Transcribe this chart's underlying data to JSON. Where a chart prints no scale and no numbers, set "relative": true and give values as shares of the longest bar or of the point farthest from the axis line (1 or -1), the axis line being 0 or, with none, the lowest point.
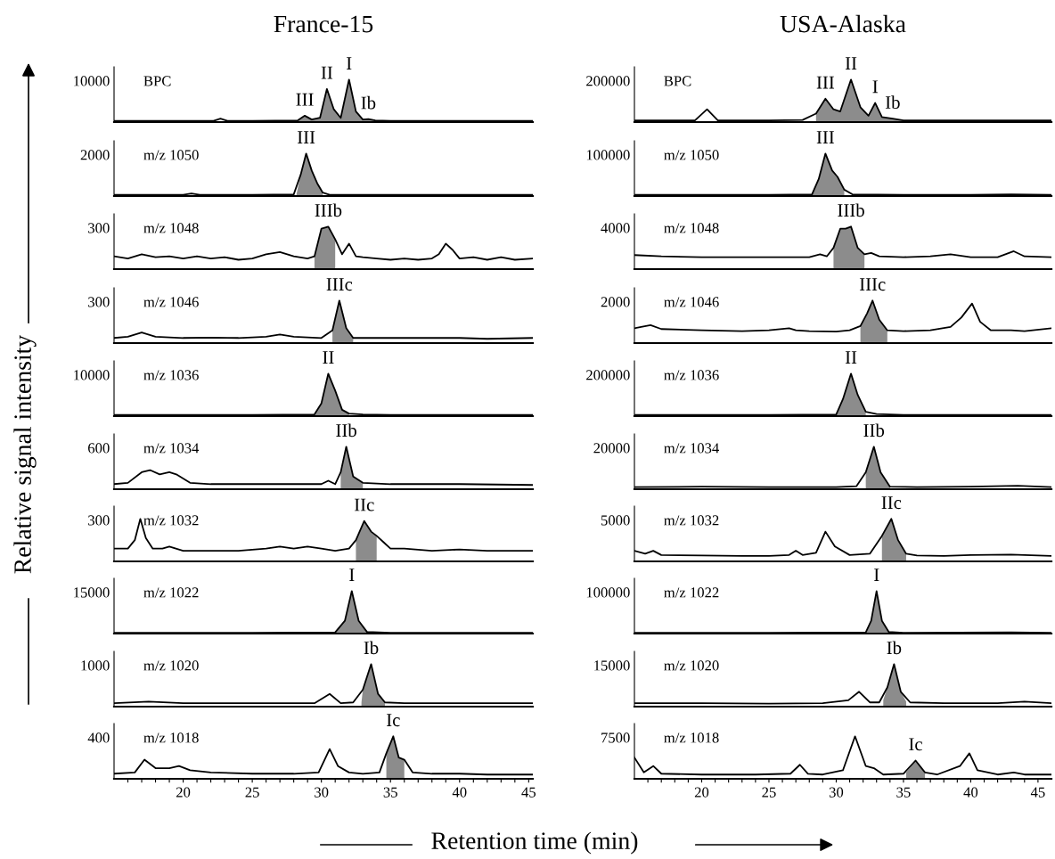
{
  "chart_data": [
    {
      "type": "line",
      "relative": true,
      "tick_labels": false,
      "title": "France-15",
      "xlim": [
        15,
        45.3
      ],
      "annotations": [
        "10000",
        "BPC",
        {
          "text": "III",
          "x": 28.8,
          "y": 0.15
        },
        {
          "text": "II",
          "x": 30.4,
          "y": 0.78
        },
        {
          "text": "I",
          "x": 32.0,
          "y": 1.0
        },
        {
          "text": "Ib",
          "x": 33.4,
          "y": 0.07
        }
      ],
      "series": [
        {
          "type": "line",
          "color": "#000000",
          "x": [
            15,
            20,
            22.2,
            22.7,
            23.2,
            25,
            28.3,
            28.8,
            29.3,
            29.9,
            30.4,
            30.9,
            31.4,
            32.0,
            32.5,
            33.0,
            33.4,
            33.9,
            35,
            40,
            45.3
          ],
          "values": [
            0.03,
            0.03,
            0.03,
            0.08,
            0.03,
            0.03,
            0.04,
            0.15,
            0.06,
            0.1,
            0.78,
            0.3,
            0.1,
            1.0,
            0.25,
            0.06,
            0.07,
            0.04,
            0.03,
            0.03,
            0.03
          ]
        },
        {
          "type": "area",
          "color": "#8c8c8c",
          "x": [
            28.3,
            28.8,
            29.3,
            29.9,
            30.4,
            30.9,
            31.4,
            32.0,
            32.5,
            33.0,
            33.4,
            33.9
          ],
          "values": [
            0.04,
            0.15,
            0.06,
            0.1,
            0.78,
            0.3,
            0.1,
            1.0,
            0.25,
            0.06,
            0.07,
            0.04
          ]
        }
      ]
    },
    {
      "type": "line",
      "relative": true,
      "tick_labels": false,
      "title": "USA-Alaska",
      "xlim": [
        15,
        46
      ],
      "annotations": [
        "200000",
        "BPC",
        {
          "text": "III",
          "x": 29.2,
          "y": 0.55
        },
        {
          "text": "II",
          "x": 31.1,
          "y": 1.0
        },
        {
          "text": "I",
          "x": 32.9,
          "y": 0.45
        },
        {
          "text": "Ib",
          "x": 34.2,
          "y": 0.08
        }
      ],
      "series": [
        {
          "type": "line",
          "color": "#000000",
          "x": [
            15,
            19.5,
            20.4,
            21.2,
            25,
            27.5,
            28.5,
            29.2,
            29.8,
            30.3,
            31.1,
            31.8,
            32.4,
            32.9,
            33.4,
            34.2,
            35,
            38,
            46
          ],
          "values": [
            0.04,
            0.04,
            0.3,
            0.04,
            0.04,
            0.05,
            0.2,
            0.55,
            0.3,
            0.25,
            1.0,
            0.35,
            0.15,
            0.45,
            0.12,
            0.08,
            0.04,
            0.04,
            0.04
          ]
        },
        {
          "type": "area",
          "color": "#8c8c8c",
          "x": [
            28.5,
            29.2,
            29.8,
            30.3,
            31.1,
            31.8,
            32.4,
            32.9,
            33.4,
            34.2,
            35
          ],
          "values": [
            0.2,
            0.55,
            0.3,
            0.25,
            1.0,
            0.35,
            0.15,
            0.45,
            0.12,
            0.08,
            0.04
          ]
        }
      ]
    },
    {
      "type": "line",
      "relative": true,
      "tick_labels": false,
      "xlim": [
        15,
        45.3
      ],
      "annotations": [
        "2000",
        "m/z 1050",
        {
          "text": "III",
          "x": 28.9,
          "y": 1.0
        }
      ],
      "series": [
        {
          "type": "line",
          "color": "#000000",
          "x": [
            15,
            20,
            20.6,
            21.2,
            25,
            28,
            28.5,
            28.9,
            29.3,
            29.7,
            30.1,
            30.6,
            35,
            40,
            45.3
          ],
          "values": [
            0.03,
            0.03,
            0.06,
            0.03,
            0.03,
            0.04,
            0.5,
            1,
            0.6,
            0.3,
            0.08,
            0.03,
            0.03,
            0.03,
            0.03
          ]
        },
        {
          "type": "area",
          "color": "#8c8c8c",
          "x": [
            28.2,
            28.5,
            28.9,
            29.3,
            29.7,
            30.1
          ],
          "values": [
            0.04,
            0.5,
            1,
            0.6,
            0.3,
            0.08
          ]
        }
      ]
    },
    {
      "type": "line",
      "relative": true,
      "tick_labels": false,
      "xlim": [
        15,
        46
      ],
      "annotations": [
        "100000",
        "m/z 1050",
        {
          "text": "III",
          "x": 29.2,
          "y": 1.0
        }
      ],
      "series": [
        {
          "type": "line",
          "color": "#000000",
          "x": [
            15,
            25,
            28.2,
            28.7,
            29.2,
            29.7,
            30.1,
            30.6,
            31.2,
            35,
            40,
            43,
            46
          ],
          "values": [
            0.03,
            0.03,
            0.04,
            0.4,
            1,
            0.6,
            0.45,
            0.15,
            0.04,
            0.03,
            0.03,
            0.04,
            0.03
          ]
        },
        {
          "type": "area",
          "color": "#8c8c8c",
          "x": [
            28.2,
            28.7,
            29.2,
            29.7,
            30.1,
            30.6
          ],
          "values": [
            0.04,
            0.4,
            1,
            0.6,
            0.45,
            0.15
          ]
        }
      ]
    },
    {
      "type": "line",
      "relative": true,
      "tick_labels": false,
      "xlim": [
        15,
        45.3
      ],
      "annotations": [
        "300",
        "m/z 1048",
        {
          "text": "IIIb",
          "x": 30.5,
          "y": 1.0
        }
      ],
      "series": [
        {
          "type": "line",
          "color": "#000000",
          "x": [
            15,
            16,
            17,
            18,
            19,
            20,
            21,
            22,
            23,
            24,
            25,
            26,
            27,
            28,
            29,
            29.5,
            30,
            30.5,
            31,
            31.5,
            32,
            32.5,
            33,
            34,
            35,
            36,
            37,
            38,
            38.5,
            39,
            39.5,
            40,
            41,
            42,
            43,
            44,
            45.3
          ],
          "values": [
            0.3,
            0.25,
            0.35,
            0.28,
            0.3,
            0.25,
            0.3,
            0.25,
            0.28,
            0.22,
            0.25,
            0.35,
            0.4,
            0.3,
            0.25,
            0.3,
            0.95,
            1,
            0.7,
            0.35,
            0.6,
            0.3,
            0.28,
            0.25,
            0.22,
            0.25,
            0.22,
            0.25,
            0.35,
            0.6,
            0.45,
            0.25,
            0.28,
            0.22,
            0.28,
            0.22,
            0.25
          ]
        },
        {
          "type": "area",
          "color": "#8c8c8c",
          "x": [
            29.5,
            30,
            30.5,
            31
          ],
          "values": [
            0.3,
            0.95,
            1,
            0.7
          ]
        }
      ]
    },
    {
      "type": "line",
      "relative": true,
      "tick_labels": false,
      "xlim": [
        15,
        46
      ],
      "annotations": [
        "4000",
        "m/z 1048",
        {
          "text": "IIIb",
          "x": 31.1,
          "y": 1.0
        }
      ],
      "series": [
        {
          "type": "line",
          "color": "#000000",
          "x": [
            15,
            17,
            20,
            25,
            28,
            28.8,
            29.3,
            29.8,
            30.3,
            30.7,
            31.1,
            31.6,
            32.1,
            32.6,
            33.2,
            35,
            37,
            38.5,
            40,
            42,
            43.2,
            44,
            46
          ],
          "values": [
            0.33,
            0.3,
            0.28,
            0.28,
            0.28,
            0.35,
            0.3,
            0.5,
            0.95,
            0.95,
            1,
            0.5,
            0.35,
            0.38,
            0.3,
            0.28,
            0.3,
            0.35,
            0.28,
            0.28,
            0.42,
            0.3,
            0.28
          ]
        },
        {
          "type": "area",
          "color": "#8c8c8c",
          "x": [
            29.8,
            30.3,
            30.7,
            31.1,
            31.6,
            32.1
          ],
          "values": [
            0.5,
            0.95,
            0.95,
            1,
            0.5,
            0.35
          ]
        }
      ]
    },
    {
      "type": "line",
      "relative": true,
      "tick_labels": false,
      "xlim": [
        15,
        45.3
      ],
      "annotations": [
        "300",
        "m/z 1046",
        {
          "text": "IIIc",
          "x": 31.3,
          "y": 1.0
        }
      ],
      "series": [
        {
          "type": "line",
          "color": "#000000",
          "x": [
            15,
            16,
            17,
            18,
            20,
            22,
            24,
            26,
            27,
            28,
            30,
            30.8,
            31.3,
            31.8,
            32.3,
            33,
            35,
            38,
            40,
            42,
            45.3
          ],
          "values": [
            0.12,
            0.15,
            0.25,
            0.15,
            0.12,
            0.13,
            0.12,
            0.15,
            0.2,
            0.15,
            0.12,
            0.3,
            1,
            0.35,
            0.12,
            0.12,
            0.12,
            0.12,
            0.12,
            0.1,
            0.12
          ]
        },
        {
          "type": "area",
          "color": "#8c8c8c",
          "x": [
            30.8,
            31.3,
            31.8,
            32.3
          ],
          "values": [
            0.3,
            1,
            0.35,
            0.12
          ]
        }
      ]
    },
    {
      "type": "line",
      "relative": true,
      "tick_labels": false,
      "xlim": [
        15,
        46
      ],
      "annotations": [
        "2000",
        "m/z 1046",
        {
          "text": "IIIc",
          "x": 32.7,
          "y": 1.0
        }
      ],
      "series": [
        {
          "type": "line",
          "color": "#000000",
          "x": [
            15,
            15.5,
            16.2,
            17,
            20,
            23,
            25,
            26.5,
            27,
            28,
            30,
            31,
            31.8,
            32.3,
            32.7,
            33.2,
            33.8,
            35,
            37,
            38.5,
            39.3,
            40.1,
            40.7,
            41.5,
            43,
            44,
            46
          ],
          "values": [
            0.35,
            0.38,
            0.42,
            0.33,
            0.3,
            0.28,
            0.3,
            0.35,
            0.3,
            0.28,
            0.27,
            0.3,
            0.4,
            0.7,
            1,
            0.55,
            0.3,
            0.28,
            0.3,
            0.38,
            0.6,
            0.93,
            0.5,
            0.3,
            0.3,
            0.28,
            0.35
          ]
        },
        {
          "type": "area",
          "color": "#8c8c8c",
          "x": [
            31.8,
            32.3,
            32.7,
            33.2,
            33.8
          ],
          "values": [
            0.4,
            0.7,
            1,
            0.55,
            0.3
          ]
        }
      ]
    },
    {
      "type": "line",
      "relative": true,
      "tick_labels": false,
      "xlim": [
        15,
        45.3
      ],
      "annotations": [
        "10000",
        "m/z 1036",
        {
          "text": "II",
          "x": 30.5,
          "y": 1.0
        }
      ],
      "series": [
        {
          "type": "line",
          "color": "#000000",
          "x": [
            15,
            25,
            29.5,
            30,
            30.5,
            31,
            31.5,
            32,
            33,
            35,
            45.3
          ],
          "values": [
            0.03,
            0.03,
            0.04,
            0.3,
            1,
            0.6,
            0.15,
            0.06,
            0.04,
            0.03,
            0.03
          ]
        },
        {
          "type": "area",
          "color": "#8c8c8c",
          "x": [
            29.5,
            30,
            30.5,
            31,
            31.5,
            32
          ],
          "values": [
            0.04,
            0.3,
            1,
            0.6,
            0.15,
            0.06
          ]
        }
      ]
    },
    {
      "type": "line",
      "relative": true,
      "tick_labels": false,
      "xlim": [
        15,
        46
      ],
      "annotations": [
        "200000",
        "m/z 1036",
        {
          "text": "II",
          "x": 31.1,
          "y": 1.0
        }
      ],
      "series": [
        {
          "type": "line",
          "color": "#000000",
          "x": [
            15,
            25,
            30,
            30.5,
            31.1,
            31.6,
            32.2,
            33,
            35,
            46
          ],
          "values": [
            0.03,
            0.03,
            0.04,
            0.4,
            1,
            0.5,
            0.1,
            0.05,
            0.03,
            0.03
          ]
        },
        {
          "type": "area",
          "color": "#8c8c8c",
          "x": [
            30,
            30.5,
            31.1,
            31.6,
            32.2
          ],
          "values": [
            0.04,
            0.4,
            1,
            0.5,
            0.1
          ]
        }
      ]
    },
    {
      "type": "line",
      "relative": true,
      "tick_labels": false,
      "ylabel": "Relative signal intensity",
      "xlim": [
        15,
        45.3
      ],
      "annotations": [
        "600",
        "m/z 1034",
        {
          "text": "IIb",
          "x": 31.8,
          "y": 1.0
        }
      ],
      "series": [
        {
          "type": "line",
          "color": "#000000",
          "x": [
            15,
            16,
            17,
            17.6,
            18.3,
            19,
            19.5,
            20.5,
            22,
            25,
            28,
            30,
            30.5,
            31,
            31.4,
            31.8,
            32.3,
            33,
            35,
            40,
            45.3
          ],
          "values": [
            0.12,
            0.15,
            0.4,
            0.45,
            0.35,
            0.4,
            0.35,
            0.15,
            0.12,
            0.12,
            0.12,
            0.12,
            0.2,
            0.12,
            0.4,
            1,
            0.3,
            0.15,
            0.12,
            0.12,
            0.1
          ]
        },
        {
          "type": "area",
          "color": "#8c8c8c",
          "x": [
            31.4,
            31.8,
            32.3,
            33
          ],
          "values": [
            0.4,
            1,
            0.3,
            0.15
          ]
        }
      ]
    },
    {
      "type": "line",
      "relative": true,
      "tick_labels": false,
      "xlim": [
        15,
        46
      ],
      "annotations": [
        "20000",
        "m/z 1034",
        {
          "text": "IIb",
          "x": 32.8,
          "y": 1.0
        }
      ],
      "series": [
        {
          "type": "line",
          "color": "#000000",
          "x": [
            15,
            20,
            25,
            30,
            31.5,
            32.2,
            32.8,
            33.3,
            34,
            36,
            40,
            43.5,
            46
          ],
          "values": [
            0.05,
            0.06,
            0.05,
            0.05,
            0.07,
            0.4,
            1,
            0.4,
            0.06,
            0.05,
            0.06,
            0.08,
            0.05
          ]
        },
        {
          "type": "area",
          "color": "#8c8c8c",
          "x": [
            32.2,
            32.8,
            33.3,
            34
          ],
          "values": [
            0.4,
            1,
            0.4,
            0.06
          ]
        }
      ]
    },
    {
      "type": "line",
      "relative": true,
      "tick_labels": false,
      "xlim": [
        15,
        45.3
      ],
      "annotations": [
        "300",
        "m/z 1032",
        {
          "text": "IIc",
          "x": 33.1,
          "y": 0.95
        }
      ],
      "series": [
        {
          "type": "line",
          "color": "#000000",
          "x": [
            15,
            16,
            16.5,
            16.9,
            17.3,
            17.8,
            18.5,
            19,
            20,
            22,
            24,
            26,
            27,
            28,
            29,
            30,
            31,
            32,
            32.5,
            33.1,
            33.6,
            34,
            34.5,
            35,
            36,
            38,
            40,
            42,
            45.3
          ],
          "values": [
            0.3,
            0.3,
            0.5,
            1,
            0.55,
            0.3,
            0.3,
            0.35,
            0.25,
            0.25,
            0.25,
            0.3,
            0.35,
            0.3,
            0.35,
            0.3,
            0.25,
            0.3,
            0.5,
            0.95,
            0.7,
            0.6,
            0.45,
            0.3,
            0.3,
            0.25,
            0.28,
            0.25,
            0.25
          ]
        },
        {
          "type": "area",
          "color": "#8c8c8c",
          "x": [
            32.5,
            33.1,
            33.6,
            34
          ],
          "values": [
            0.5,
            0.95,
            0.7,
            0.6
          ]
        }
      ]
    },
    {
      "type": "line",
      "relative": true,
      "tick_labels": false,
      "xlim": [
        15,
        46
      ],
      "annotations": [
        "5000",
        "m/z 1032",
        {
          "text": "IIc",
          "x": 34.1,
          "y": 1.0
        }
      ],
      "series": [
        {
          "type": "line",
          "color": "#000000",
          "x": [
            15,
            15.8,
            16.4,
            17,
            20,
            23,
            25,
            26.5,
            27,
            27.5,
            28.5,
            29.2,
            29.9,
            31,
            32.5,
            33.4,
            34.1,
            34.6,
            35.2,
            36,
            38,
            40,
            43,
            46
          ],
          "values": [
            0.25,
            0.18,
            0.25,
            0.15,
            0.14,
            0.13,
            0.13,
            0.15,
            0.25,
            0.15,
            0.2,
            0.7,
            0.35,
            0.15,
            0.18,
            0.6,
            1,
            0.5,
            0.18,
            0.14,
            0.13,
            0.15,
            0.16,
            0.13
          ]
        },
        {
          "type": "area",
          "color": "#8c8c8c",
          "x": [
            33.4,
            34.1,
            34.6,
            35.2
          ],
          "values": [
            0.6,
            1,
            0.5,
            0.18
          ]
        }
      ]
    },
    {
      "type": "line",
      "relative": true,
      "tick_labels": false,
      "xlim": [
        15,
        45.3
      ],
      "annotations": [
        "15000",
        "m/z 1022",
        {
          "text": "I",
          "x": 32.2,
          "y": 1.0
        }
      ],
      "series": [
        {
          "type": "line",
          "color": "#000000",
          "x": [
            15,
            25,
            31,
            31.7,
            32.2,
            32.7,
            33.3,
            35,
            45.3
          ],
          "values": [
            0.02,
            0.02,
            0.03,
            0.3,
            1,
            0.3,
            0.04,
            0.02,
            0.02
          ]
        },
        {
          "type": "area",
          "color": "#8c8c8c",
          "x": [
            31,
            31.7,
            32.2,
            32.7,
            33.3
          ],
          "values": [
            0.03,
            0.3,
            1,
            0.3,
            0.04
          ]
        }
      ]
    },
    {
      "type": "line",
      "relative": true,
      "tick_labels": false,
      "xlim": [
        15,
        46
      ],
      "annotations": [
        "100000",
        "m/z 1022",
        {
          "text": "I",
          "x": 33.0,
          "y": 1.0
        }
      ],
      "series": [
        {
          "type": "line",
          "color": "#000000",
          "x": [
            15,
            25,
            32.2,
            32.6,
            33.0,
            33.4,
            33.9,
            35,
            43,
            46
          ],
          "values": [
            0.02,
            0.02,
            0.03,
            0.3,
            1,
            0.3,
            0.04,
            0.02,
            0.03,
            0.02
          ]
        },
        {
          "type": "area",
          "color": "#8c8c8c",
          "x": [
            32.2,
            32.6,
            33.0,
            33.4,
            33.9
          ],
          "values": [
            0.03,
            0.3,
            1,
            0.3,
            0.04
          ]
        }
      ]
    },
    {
      "type": "line",
      "relative": true,
      "tick_labels": false,
      "xlim": [
        15,
        45.3
      ],
      "annotations": [
        "1000",
        "m/z 1020",
        {
          "text": "Ib",
          "x": 33.6,
          "y": 1.0
        }
      ],
      "series": [
        {
          "type": "line",
          "color": "#000000",
          "x": [
            15,
            17.5,
            20,
            25,
            29.5,
            30.6,
            31.4,
            32.3,
            33,
            33.6,
            34.1,
            34.6,
            36,
            40,
            45.3
          ],
          "values": [
            0.08,
            0.12,
            0.08,
            0.08,
            0.08,
            0.3,
            0.08,
            0.1,
            0.4,
            1,
            0.3,
            0.1,
            0.08,
            0.08,
            0.08
          ]
        },
        {
          "type": "area",
          "color": "#8c8c8c",
          "x": [
            32.9,
            33,
            33.6,
            34.1,
            34.6
          ],
          "values": [
            0.1,
            0.4,
            1,
            0.3,
            0.1
          ]
        }
      ]
    },
    {
      "type": "line",
      "relative": true,
      "tick_labels": false,
      "xlim": [
        15,
        46
      ],
      "annotations": [
        "15000",
        "m/z 1020",
        {
          "text": "Ib",
          "x": 34.3,
          "y": 1.0
        }
      ],
      "series": [
        {
          "type": "line",
          "color": "#000000",
          "x": [
            15,
            20,
            25,
            29,
            30.9,
            31.7,
            32.5,
            33.2,
            33.8,
            34.3,
            34.8,
            35.5,
            38,
            42,
            44,
            46
          ],
          "values": [
            0.08,
            0.08,
            0.07,
            0.08,
            0.15,
            0.35,
            0.1,
            0.1,
            0.45,
            1,
            0.35,
            0.1,
            0.08,
            0.08,
            0.12,
            0.08
          ]
        },
        {
          "type": "area",
          "color": "#8c8c8c",
          "x": [
            33.5,
            33.8,
            34.3,
            34.8,
            35.2
          ],
          "values": [
            0.15,
            0.45,
            1,
            0.35,
            0.12
          ]
        }
      ]
    },
    {
      "type": "line",
      "relative": true,
      "tick_labels": "x",
      "xlabel": "Retention time (min)",
      "xlim": [
        15,
        45.3
      ],
      "xticks": [
        {
          "value": 16,
          "label": null
        },
        {
          "value": 17,
          "label": null
        },
        {
          "value": 18,
          "label": null
        },
        {
          "value": 19,
          "label": null
        },
        20,
        {
          "value": 21,
          "label": null
        },
        {
          "value": 22,
          "label": null
        },
        {
          "value": 23,
          "label": null
        },
        {
          "value": 24,
          "label": null
        },
        25,
        {
          "value": 26,
          "label": null
        },
        {
          "value": 27,
          "label": null
        },
        {
          "value": 28,
          "label": null
        },
        {
          "value": 29,
          "label": null
        },
        30,
        {
          "value": 31,
          "label": null
        },
        {
          "value": 32,
          "label": null
        },
        {
          "value": 33,
          "label": null
        },
        {
          "value": 34,
          "label": null
        },
        35,
        {
          "value": 36,
          "label": null
        },
        {
          "value": 37,
          "label": null
        },
        {
          "value": 38,
          "label": null
        },
        {
          "value": 39,
          "label": null
        },
        40,
        {
          "value": 41,
          "label": null
        },
        {
          "value": 42,
          "label": null
        },
        {
          "value": 43,
          "label": null
        },
        {
          "value": 44,
          "label": null
        },
        45
      ],
      "annotations": [
        "400",
        "m/z 1018",
        {
          "text": "Ic",
          "x": 35.2,
          "y": 1.0
        }
      ],
      "series": [
        {
          "type": "line",
          "color": "#000000",
          "x": [
            15,
            16.5,
            17.2,
            18,
            19,
            19.7,
            20.5,
            22,
            25,
            28,
            29.8,
            30.6,
            31.2,
            32,
            33,
            34.2,
            34.7,
            35.2,
            35.6,
            36,
            36.6,
            38,
            40,
            42,
            45.3
          ],
          "values": [
            0.12,
            0.15,
            0.45,
            0.25,
            0.25,
            0.3,
            0.2,
            0.15,
            0.12,
            0.12,
            0.15,
            0.7,
            0.3,
            0.15,
            0.12,
            0.15,
            0.6,
            1,
            0.5,
            0.45,
            0.15,
            0.12,
            0.12,
            0.1,
            0.1
          ]
        },
        {
          "type": "area",
          "color": "#8c8c8c",
          "x": [
            34.7,
            35.2,
            35.6,
            36
          ],
          "values": [
            0.6,
            1,
            0.5,
            0.45
          ]
        }
      ]
    },
    {
      "type": "line",
      "relative": true,
      "tick_labels": "x",
      "xlim": [
        15,
        46
      ],
      "xticks": [
        {
          "value": 16,
          "label": null
        },
        {
          "value": 17,
          "label": null
        },
        {
          "value": 18,
          "label": null
        },
        {
          "value": 19,
          "label": null
        },
        20,
        {
          "value": 21,
          "label": null
        },
        {
          "value": 22,
          "label": null
        },
        {
          "value": 23,
          "label": null
        },
        {
          "value": 24,
          "label": null
        },
        25,
        {
          "value": 26,
          "label": null
        },
        {
          "value": 27,
          "label": null
        },
        {
          "value": 28,
          "label": null
        },
        {
          "value": 29,
          "label": null
        },
        30,
        {
          "value": 31,
          "label": null
        },
        {
          "value": 32,
          "label": null
        },
        {
          "value": 33,
          "label": null
        },
        {
          "value": 34,
          "label": null
        },
        35,
        {
          "value": 36,
          "label": null
        },
        {
          "value": 37,
          "label": null
        },
        {
          "value": 38,
          "label": null
        },
        {
          "value": 39,
          "label": null
        },
        40,
        {
          "value": 41,
          "label": null
        },
        {
          "value": 42,
          "label": null
        },
        {
          "value": 43,
          "label": null
        },
        {
          "value": 44,
          "label": null
        },
        45
      ],
      "annotations": [
        "7500",
        "m/z 1018",
        {
          "text": "Ic",
          "x": 35.9,
          "y": 0.43
        }
      ],
      "series": [
        {
          "type": "line",
          "color": "#000000",
          "x": [
            15,
            15.7,
            16.4,
            17,
            20,
            24,
            26.6,
            27.3,
            27.9,
            29,
            30.5,
            31.4,
            32.2,
            32.8,
            33.5,
            35,
            35.9,
            36.6,
            37.5,
            39.2,
            39.9,
            40.5,
            42,
            43.2,
            44,
            46
          ],
          "values": [
            0.5,
            0.15,
            0.3,
            0.12,
            0.1,
            0.1,
            0.12,
            0.33,
            0.12,
            0.1,
            0.2,
            1,
            0.3,
            0.25,
            0.1,
            0.12,
            0.43,
            0.15,
            0.1,
            0.3,
            0.6,
            0.2,
            0.1,
            0.15,
            0.1,
            0.1
          ]
        },
        {
          "type": "area",
          "color": "#8c8c8c",
          "x": [
            35.2,
            35.9,
            36.6
          ],
          "values": [
            0.15,
            0.43,
            0.12
          ]
        }
      ]
    }
  ]
}
